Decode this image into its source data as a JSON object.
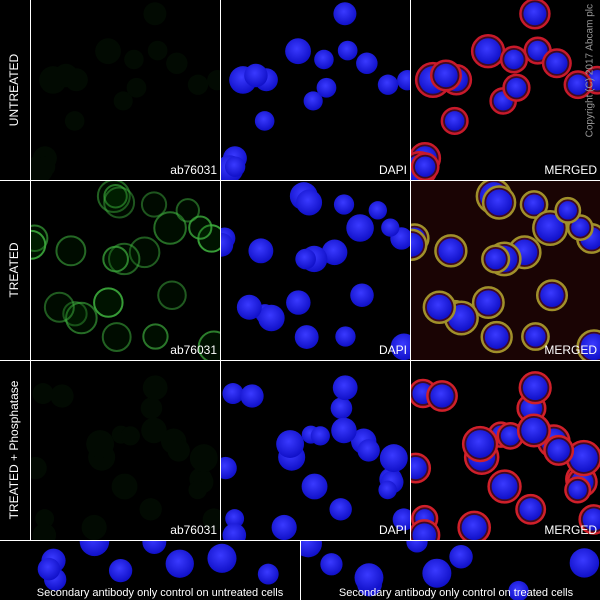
{
  "rows": [
    {
      "label": "UNTREATED",
      "panels": [
        "ab76031",
        "DAPI",
        "MERGED"
      ]
    },
    {
      "label": "TREATED",
      "panels": [
        "ab76031",
        "DAPI",
        "MERGED"
      ]
    },
    {
      "label": "TREATED + Phosphatase",
      "panels": [
        "ab76031",
        "DAPI",
        "MERGED"
      ]
    }
  ],
  "controls": [
    "Secondary antibody only control on untreated cells",
    "Secondary antibody only control on treated cells"
  ],
  "copyright": "Copyright (C) 2017 Abcam plc"
}
